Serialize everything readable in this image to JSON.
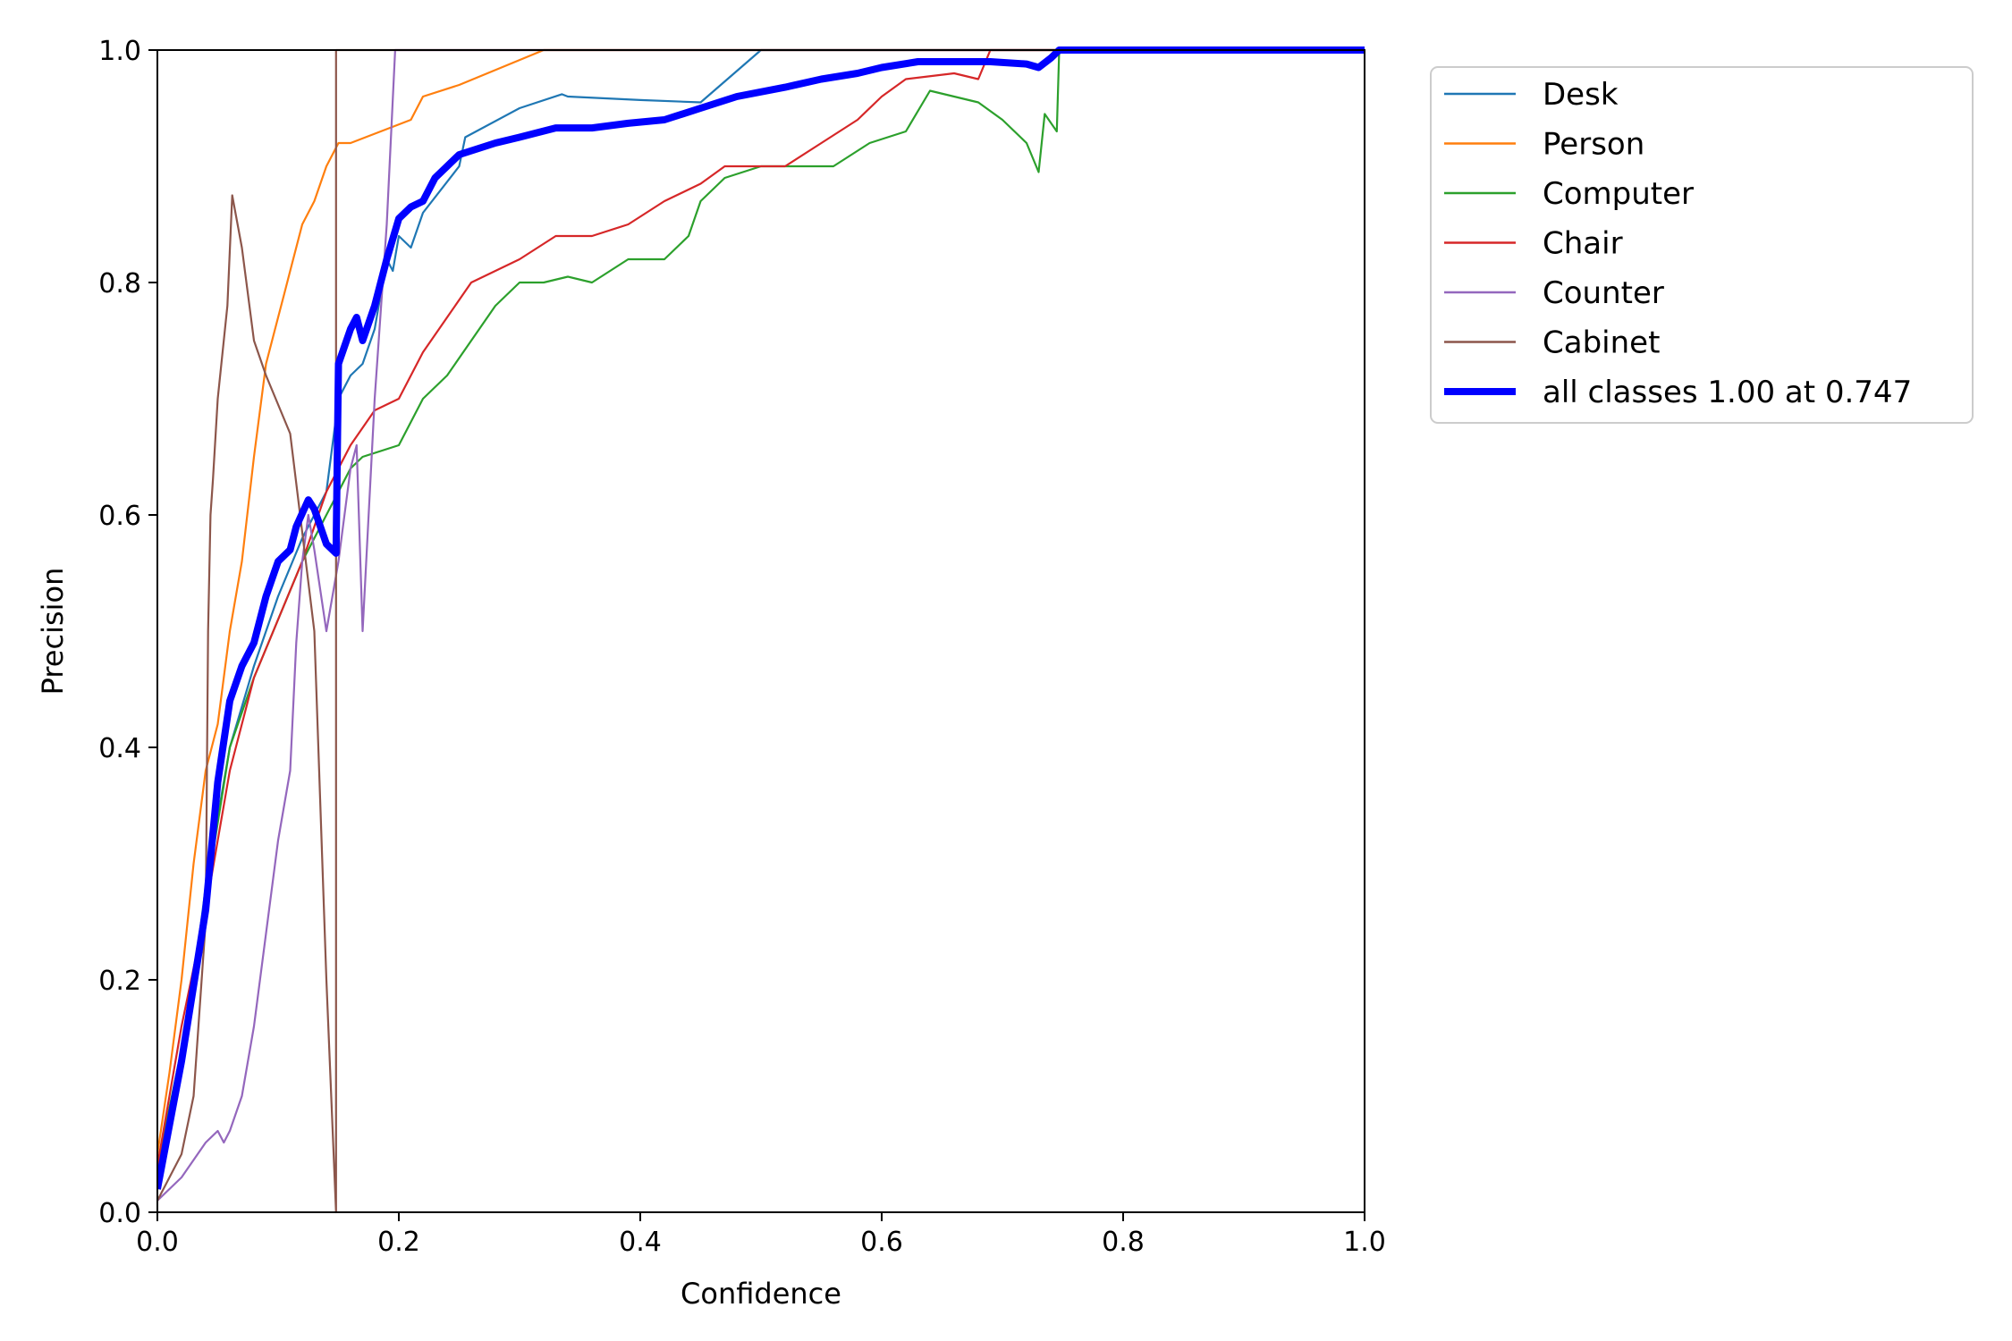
{
  "chart_data": {
    "type": "line",
    "title": "",
    "xlabel": "Confidence",
    "ylabel": "Precision",
    "xlim": [
      0.0,
      1.0
    ],
    "ylim": [
      0.0,
      1.0
    ],
    "xticks": [
      "0.0",
      "0.2",
      "0.4",
      "0.6",
      "0.8",
      "1.0"
    ],
    "yticks": [
      "0.0",
      "0.2",
      "0.4",
      "0.6",
      "0.8",
      "1.0"
    ],
    "grid": false,
    "legend_position": "outside-top-right",
    "series": [
      {
        "name": "Desk",
        "color": "#1f77b4",
        "points": [
          [
            0.0,
            0.03
          ],
          [
            0.02,
            0.12
          ],
          [
            0.04,
            0.28
          ],
          [
            0.06,
            0.4
          ],
          [
            0.08,
            0.47
          ],
          [
            0.1,
            0.53
          ],
          [
            0.12,
            0.58
          ],
          [
            0.14,
            0.62
          ],
          [
            0.15,
            0.7
          ],
          [
            0.16,
            0.72
          ],
          [
            0.17,
            0.73
          ],
          [
            0.18,
            0.76
          ],
          [
            0.19,
            0.82
          ],
          [
            0.195,
            0.81
          ],
          [
            0.2,
            0.84
          ],
          [
            0.21,
            0.83
          ],
          [
            0.22,
            0.86
          ],
          [
            0.25,
            0.9
          ],
          [
            0.255,
            0.925
          ],
          [
            0.3,
            0.95
          ],
          [
            0.335,
            0.962
          ],
          [
            0.34,
            0.96
          ],
          [
            0.4,
            0.957
          ],
          [
            0.45,
            0.955
          ],
          [
            0.5,
            1.0
          ],
          [
            0.6,
            1.0
          ],
          [
            0.8,
            1.0
          ],
          [
            1.0,
            1.0
          ]
        ]
      },
      {
        "name": "Person",
        "color": "#ff7f0e",
        "points": [
          [
            0.0,
            0.05
          ],
          [
            0.01,
            0.12
          ],
          [
            0.02,
            0.2
          ],
          [
            0.03,
            0.3
          ],
          [
            0.04,
            0.38
          ],
          [
            0.05,
            0.42
          ],
          [
            0.06,
            0.5
          ],
          [
            0.07,
            0.56
          ],
          [
            0.08,
            0.65
          ],
          [
            0.09,
            0.73
          ],
          [
            0.1,
            0.77
          ],
          [
            0.105,
            0.79
          ],
          [
            0.11,
            0.81
          ],
          [
            0.12,
            0.85
          ],
          [
            0.13,
            0.87
          ],
          [
            0.14,
            0.9
          ],
          [
            0.15,
            0.92
          ],
          [
            0.16,
            0.92
          ],
          [
            0.21,
            0.94
          ],
          [
            0.22,
            0.96
          ],
          [
            0.25,
            0.97
          ],
          [
            0.32,
            1.0
          ],
          [
            0.5,
            1.0
          ],
          [
            1.0,
            1.0
          ]
        ]
      },
      {
        "name": "Computer",
        "color": "#2ca02c",
        "points": [
          [
            0.0,
            0.04
          ],
          [
            0.02,
            0.14
          ],
          [
            0.04,
            0.27
          ],
          [
            0.06,
            0.4
          ],
          [
            0.08,
            0.46
          ],
          [
            0.1,
            0.51
          ],
          [
            0.12,
            0.56
          ],
          [
            0.14,
            0.6
          ],
          [
            0.16,
            0.64
          ],
          [
            0.17,
            0.65
          ],
          [
            0.2,
            0.66
          ],
          [
            0.22,
            0.7
          ],
          [
            0.24,
            0.72
          ],
          [
            0.26,
            0.75
          ],
          [
            0.28,
            0.78
          ],
          [
            0.3,
            0.8
          ],
          [
            0.32,
            0.8
          ],
          [
            0.34,
            0.805
          ],
          [
            0.36,
            0.8
          ],
          [
            0.39,
            0.82
          ],
          [
            0.42,
            0.82
          ],
          [
            0.44,
            0.84
          ],
          [
            0.45,
            0.87
          ],
          [
            0.47,
            0.89
          ],
          [
            0.5,
            0.9
          ],
          [
            0.53,
            0.9
          ],
          [
            0.56,
            0.9
          ],
          [
            0.59,
            0.92
          ],
          [
            0.62,
            0.93
          ],
          [
            0.64,
            0.965
          ],
          [
            0.68,
            0.955
          ],
          [
            0.7,
            0.94
          ],
          [
            0.72,
            0.92
          ],
          [
            0.73,
            0.895
          ],
          [
            0.735,
            0.945
          ],
          [
            0.745,
            0.93
          ],
          [
            0.747,
            1.0
          ],
          [
            1.0,
            1.0
          ]
        ]
      },
      {
        "name": "Chair",
        "color": "#d62728",
        "points": [
          [
            0.0,
            0.04
          ],
          [
            0.02,
            0.16
          ],
          [
            0.04,
            0.26
          ],
          [
            0.06,
            0.38
          ],
          [
            0.08,
            0.46
          ],
          [
            0.1,
            0.51
          ],
          [
            0.12,
            0.56
          ],
          [
            0.14,
            0.62
          ],
          [
            0.16,
            0.66
          ],
          [
            0.18,
            0.69
          ],
          [
            0.2,
            0.7
          ],
          [
            0.22,
            0.74
          ],
          [
            0.24,
            0.77
          ],
          [
            0.26,
            0.8
          ],
          [
            0.28,
            0.81
          ],
          [
            0.3,
            0.82
          ],
          [
            0.33,
            0.84
          ],
          [
            0.36,
            0.84
          ],
          [
            0.39,
            0.85
          ],
          [
            0.42,
            0.87
          ],
          [
            0.45,
            0.885
          ],
          [
            0.47,
            0.9
          ],
          [
            0.5,
            0.9
          ],
          [
            0.52,
            0.9
          ],
          [
            0.55,
            0.92
          ],
          [
            0.58,
            0.94
          ],
          [
            0.6,
            0.96
          ],
          [
            0.62,
            0.975
          ],
          [
            0.66,
            0.98
          ],
          [
            0.68,
            0.975
          ],
          [
            0.69,
            1.0
          ],
          [
            1.0,
            1.0
          ]
        ]
      },
      {
        "name": "Counter",
        "color": "#9467bd",
        "points": [
          [
            0.0,
            0.01
          ],
          [
            0.02,
            0.03
          ],
          [
            0.04,
            0.06
          ],
          [
            0.05,
            0.07
          ],
          [
            0.055,
            0.06
          ],
          [
            0.06,
            0.07
          ],
          [
            0.07,
            0.1
          ],
          [
            0.08,
            0.16
          ],
          [
            0.09,
            0.24
          ],
          [
            0.1,
            0.32
          ],
          [
            0.11,
            0.38
          ],
          [
            0.115,
            0.49
          ],
          [
            0.12,
            0.56
          ],
          [
            0.125,
            0.6
          ],
          [
            0.13,
            0.57
          ],
          [
            0.14,
            0.5
          ],
          [
            0.15,
            0.56
          ],
          [
            0.16,
            0.64
          ],
          [
            0.165,
            0.66
          ],
          [
            0.17,
            0.5
          ],
          [
            0.18,
            0.7
          ],
          [
            0.19,
            0.85
          ],
          [
            0.197,
            1.0
          ],
          [
            0.3,
            1.0
          ],
          [
            1.0,
            1.0
          ]
        ]
      },
      {
        "name": "Cabinet",
        "color": "#8c564b",
        "points": [
          [
            0.0,
            0.01
          ],
          [
            0.02,
            0.05
          ],
          [
            0.03,
            0.1
          ],
          [
            0.04,
            0.25
          ],
          [
            0.042,
            0.5
          ],
          [
            0.044,
            0.6
          ],
          [
            0.046,
            0.63
          ],
          [
            0.05,
            0.7
          ],
          [
            0.058,
            0.78
          ],
          [
            0.062,
            0.875
          ],
          [
            0.07,
            0.83
          ],
          [
            0.08,
            0.75
          ],
          [
            0.09,
            0.72
          ],
          [
            0.11,
            0.67
          ],
          [
            0.13,
            0.5
          ],
          [
            0.14,
            0.2
          ],
          [
            0.148,
            0.0
          ],
          [
            0.148,
            1.0
          ],
          [
            0.2,
            1.0
          ],
          [
            1.0,
            1.0
          ]
        ]
      },
      {
        "name": "all classes 1.00 at 0.747",
        "color": "#0000ff",
        "bold": true,
        "points": [
          [
            0.0,
            0.02
          ],
          [
            0.02,
            0.13
          ],
          [
            0.04,
            0.26
          ],
          [
            0.05,
            0.37
          ],
          [
            0.06,
            0.44
          ],
          [
            0.07,
            0.47
          ],
          [
            0.08,
            0.49
          ],
          [
            0.09,
            0.53
          ],
          [
            0.1,
            0.56
          ],
          [
            0.11,
            0.57
          ],
          [
            0.115,
            0.59
          ],
          [
            0.125,
            0.613
          ],
          [
            0.13,
            0.605
          ],
          [
            0.14,
            0.575
          ],
          [
            0.148,
            0.567
          ],
          [
            0.15,
            0.73
          ],
          [
            0.16,
            0.76
          ],
          [
            0.165,
            0.77
          ],
          [
            0.17,
            0.75
          ],
          [
            0.18,
            0.78
          ],
          [
            0.19,
            0.82
          ],
          [
            0.2,
            0.855
          ],
          [
            0.21,
            0.865
          ],
          [
            0.22,
            0.87
          ],
          [
            0.23,
            0.89
          ],
          [
            0.25,
            0.91
          ],
          [
            0.28,
            0.92
          ],
          [
            0.3,
            0.925
          ],
          [
            0.33,
            0.933
          ],
          [
            0.36,
            0.933
          ],
          [
            0.39,
            0.937
          ],
          [
            0.42,
            0.94
          ],
          [
            0.45,
            0.95
          ],
          [
            0.48,
            0.96
          ],
          [
            0.52,
            0.968
          ],
          [
            0.55,
            0.975
          ],
          [
            0.58,
            0.98
          ],
          [
            0.6,
            0.985
          ],
          [
            0.63,
            0.99
          ],
          [
            0.66,
            0.99
          ],
          [
            0.69,
            0.99
          ],
          [
            0.72,
            0.988
          ],
          [
            0.73,
            0.985
          ],
          [
            0.74,
            0.993
          ],
          [
            0.747,
            1.0
          ],
          [
            1.0,
            1.0
          ]
        ]
      }
    ]
  }
}
